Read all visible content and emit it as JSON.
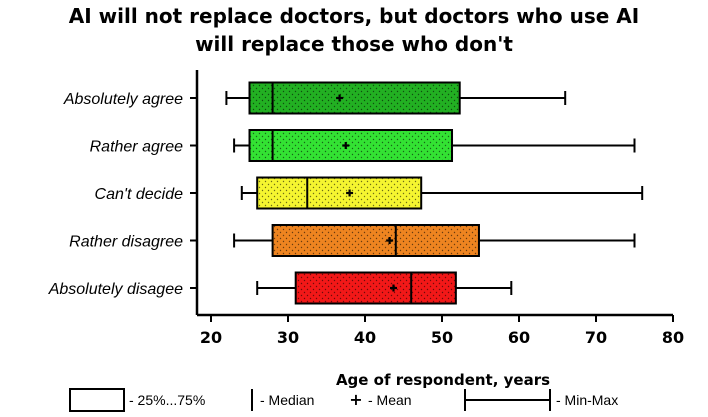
{
  "chart_data": {
    "type": "boxplot",
    "title_lines": [
      "AI will not replace doctors, but doctors who use AI",
      "will replace those who don't"
    ],
    "xlabel": "Age of respondent, years",
    "xlim": [
      20,
      80
    ],
    "xticks": [
      20,
      30,
      40,
      50,
      60,
      70,
      80
    ],
    "orientation": "horizontal",
    "grid": false,
    "legend_position": "bottom",
    "categories": [
      {
        "label": "Absolutely agree",
        "min": 22,
        "q1": 25,
        "median": 28,
        "q3": 52.3,
        "max": 66,
        "mean": 36.7,
        "color": "#22b022"
      },
      {
        "label": "Rather agree",
        "min": 23,
        "q1": 25,
        "median": 28,
        "q3": 51.3,
        "max": 75,
        "mean": 37.5,
        "color": "#33e233"
      },
      {
        "label": "Can't decide",
        "min": 24,
        "q1": 26,
        "median": 32.5,
        "q3": 47.3,
        "max": 76,
        "mean": 38,
        "color": "#f5f530"
      },
      {
        "label": "Rather disagree",
        "min": 23,
        "q1": 28,
        "median": 44,
        "q3": 54.8,
        "max": 75,
        "mean": 43.2,
        "color": "#ee8420"
      },
      {
        "label": "Absolutely disagee",
        "min": 26,
        "q1": 31,
        "median": 46,
        "q3": 51.8,
        "max": 59,
        "mean": 43.7,
        "color": "#f21818"
      }
    ]
  },
  "legend": {
    "box_label": "- 25%...75%",
    "median_label": "- Median",
    "mean_label": "- Mean",
    "minmax_label": "- Min-Max"
  }
}
